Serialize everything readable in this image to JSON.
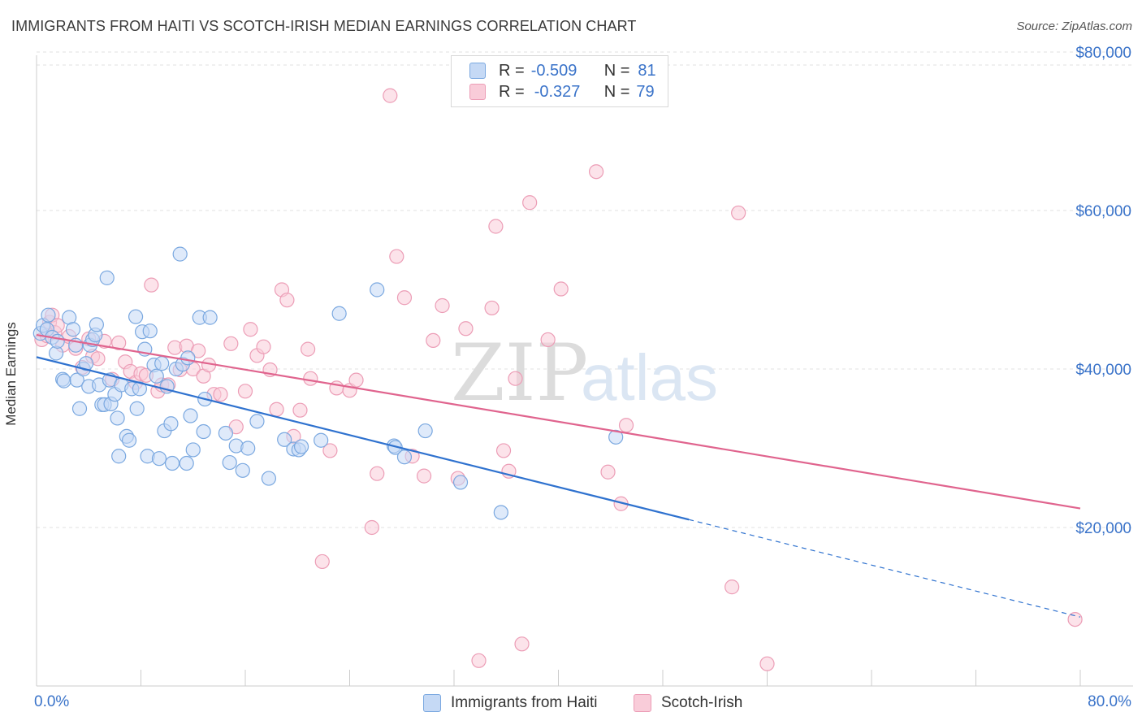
{
  "title": "IMMIGRANTS FROM HAITI VS SCOTCH-IRISH MEDIAN EARNINGS CORRELATION CHART",
  "source": "Source: ZipAtlas.com",
  "watermark": {
    "zip": "ZIP",
    "atlas": "atlas"
  },
  "stats": {
    "r_label": "R =",
    "n_label": "N =",
    "rows": [
      {
        "r": "-0.509",
        "n": "81"
      },
      {
        "r": "-0.327",
        "n": "79"
      }
    ]
  },
  "legend": {
    "haiti": "Immigrants from Haiti",
    "scotch": "Scotch-Irish"
  },
  "colors": {
    "haiti_fill": "#c5d9f5",
    "haiti_stroke": "#7aa8e0",
    "haiti_line": "#2f72cf",
    "scotch_fill": "#f9ccd9",
    "scotch_stroke": "#ec9db6",
    "scotch_line": "#e0648e",
    "tick_label": "#3a73c9",
    "grid": "#e2e2e2"
  },
  "chart_data": {
    "type": "scatter",
    "title": "IMMIGRANTS FROM HAITI VS SCOTCH-IRISH MEDIAN EARNINGS CORRELATION CHART",
    "xlabel": "",
    "ylabel": "Median Earnings",
    "xlim": [
      0,
      80
    ],
    "ylim": [
      0,
      80000
    ],
    "x_tick_labels": [
      "0.0%",
      "80.0%"
    ],
    "y_ticks": [
      20000,
      40000,
      60000,
      80000
    ],
    "y_tick_labels": [
      "$20,000",
      "$40,000",
      "$60,000",
      "$80,000"
    ],
    "grid": true,
    "series": [
      {
        "name": "Immigrants from Haiti",
        "trend": {
          "x0": 0,
          "y0": 41500,
          "x1": 50,
          "y1": 21000,
          "dash_to_x": 80,
          "dash_to_y": 8700
        },
        "points": [
          [
            0.3,
            44500
          ],
          [
            0.5,
            45500
          ],
          [
            0.8,
            45000
          ],
          [
            0.9,
            46800
          ],
          [
            1.2,
            44000
          ],
          [
            1.5,
            42000
          ],
          [
            1.6,
            43500
          ],
          [
            2.0,
            38700
          ],
          [
            2.1,
            38500
          ],
          [
            2.5,
            46500
          ],
          [
            2.8,
            45000
          ],
          [
            3.0,
            43000
          ],
          [
            3.1,
            38600
          ],
          [
            3.3,
            35000
          ],
          [
            3.6,
            40000
          ],
          [
            3.8,
            40700
          ],
          [
            4.0,
            37800
          ],
          [
            4.1,
            43000
          ],
          [
            4.3,
            43700
          ],
          [
            4.5,
            44300
          ],
          [
            4.6,
            45600
          ],
          [
            4.8,
            38000
          ],
          [
            5.0,
            35500
          ],
          [
            5.2,
            35500
          ],
          [
            5.4,
            51500
          ],
          [
            5.6,
            38600
          ],
          [
            5.7,
            35600
          ],
          [
            6.0,
            36800
          ],
          [
            6.2,
            33800
          ],
          [
            6.3,
            29000
          ],
          [
            6.5,
            38000
          ],
          [
            6.9,
            31500
          ],
          [
            7.1,
            31000
          ],
          [
            7.3,
            37500
          ],
          [
            7.6,
            46600
          ],
          [
            7.7,
            35000
          ],
          [
            7.9,
            37500
          ],
          [
            8.1,
            44700
          ],
          [
            8.3,
            42500
          ],
          [
            8.5,
            29000
          ],
          [
            8.7,
            44800
          ],
          [
            9.0,
            40500
          ],
          [
            9.2,
            39100
          ],
          [
            9.4,
            28700
          ],
          [
            9.6,
            40700
          ],
          [
            9.8,
            32200
          ],
          [
            10.0,
            37800
          ],
          [
            10.3,
            33100
          ],
          [
            10.4,
            28100
          ],
          [
            10.7,
            40000
          ],
          [
            11.0,
            54500
          ],
          [
            11.2,
            40600
          ],
          [
            11.5,
            28100
          ],
          [
            11.6,
            41400
          ],
          [
            11.8,
            34100
          ],
          [
            12.0,
            29800
          ],
          [
            12.5,
            46500
          ],
          [
            12.8,
            32100
          ],
          [
            12.9,
            36200
          ],
          [
            13.3,
            46500
          ],
          [
            14.5,
            31900
          ],
          [
            14.8,
            28200
          ],
          [
            15.3,
            30300
          ],
          [
            15.8,
            27200
          ],
          [
            16.2,
            30000
          ],
          [
            16.9,
            33400
          ],
          [
            17.8,
            26200
          ],
          [
            19.0,
            31100
          ],
          [
            19.7,
            29900
          ],
          [
            20.1,
            29800
          ],
          [
            20.3,
            30200
          ],
          [
            21.8,
            31000
          ],
          [
            23.2,
            47000
          ],
          [
            26.1,
            50000
          ],
          [
            27.4,
            30300
          ],
          [
            27.5,
            30100
          ],
          [
            28.2,
            28900
          ],
          [
            29.8,
            32200
          ],
          [
            32.5,
            25700
          ],
          [
            35.6,
            21900
          ],
          [
            44.4,
            31400
          ]
        ]
      },
      {
        "name": "Scotch-Irish",
        "trend": {
          "x0": 0,
          "y0": 44300,
          "x1": 80,
          "y1": 22400
        },
        "points": [
          [
            0.4,
            43700
          ],
          [
            0.8,
            44200
          ],
          [
            1.0,
            45900
          ],
          [
            1.2,
            46800
          ],
          [
            1.4,
            44600
          ],
          [
            1.6,
            45500
          ],
          [
            2.0,
            43000
          ],
          [
            2.5,
            44100
          ],
          [
            3.0,
            42600
          ],
          [
            3.5,
            40200
          ],
          [
            4.0,
            43800
          ],
          [
            4.3,
            41600
          ],
          [
            4.7,
            41300
          ],
          [
            5.2,
            43500
          ],
          [
            5.8,
            38700
          ],
          [
            6.3,
            43300
          ],
          [
            6.8,
            40900
          ],
          [
            7.2,
            39700
          ],
          [
            7.6,
            38300
          ],
          [
            8.0,
            39400
          ],
          [
            8.4,
            39200
          ],
          [
            8.8,
            50600
          ],
          [
            9.3,
            37200
          ],
          [
            9.6,
            38000
          ],
          [
            10.1,
            38000
          ],
          [
            10.6,
            42700
          ],
          [
            11.0,
            39900
          ],
          [
            11.5,
            42900
          ],
          [
            12.0,
            40000
          ],
          [
            12.4,
            42300
          ],
          [
            12.8,
            39100
          ],
          [
            13.2,
            40500
          ],
          [
            13.6,
            36800
          ],
          [
            14.1,
            36800
          ],
          [
            14.9,
            43200
          ],
          [
            15.3,
            32700
          ],
          [
            16.0,
            37200
          ],
          [
            16.4,
            45000
          ],
          [
            16.9,
            41700
          ],
          [
            17.4,
            42800
          ],
          [
            17.9,
            39900
          ],
          [
            18.4,
            34900
          ],
          [
            18.8,
            50000
          ],
          [
            19.2,
            48700
          ],
          [
            19.7,
            31500
          ],
          [
            20.2,
            34800
          ],
          [
            20.8,
            42500
          ],
          [
            21.0,
            38800
          ],
          [
            21.9,
            15700
          ],
          [
            22.5,
            29700
          ],
          [
            23.0,
            37600
          ],
          [
            24.0,
            37300
          ],
          [
            24.5,
            38600
          ],
          [
            25.7,
            20000
          ],
          [
            26.1,
            26800
          ],
          [
            27.1,
            74500
          ],
          [
            27.6,
            54200
          ],
          [
            28.2,
            49000
          ],
          [
            28.8,
            29000
          ],
          [
            29.7,
            26500
          ],
          [
            30.4,
            43600
          ],
          [
            31.1,
            48000
          ],
          [
            32.3,
            26200
          ],
          [
            32.9,
            45100
          ],
          [
            33.9,
            3200
          ],
          [
            34.9,
            47700
          ],
          [
            35.2,
            58000
          ],
          [
            35.8,
            29700
          ],
          [
            36.2,
            27100
          ],
          [
            36.7,
            38800
          ],
          [
            37.2,
            5300
          ],
          [
            37.8,
            61000
          ],
          [
            39.2,
            43700
          ],
          [
            40.2,
            50100
          ],
          [
            42.9,
            64900
          ],
          [
            43.8,
            27000
          ],
          [
            44.8,
            23000
          ],
          [
            45.2,
            32900
          ],
          [
            53.8,
            59700
          ]
        ],
        "extra_points": [
          [
            53.3,
            12500
          ],
          [
            56.0,
            2800
          ],
          [
            79.6,
            8400
          ]
        ]
      }
    ]
  }
}
